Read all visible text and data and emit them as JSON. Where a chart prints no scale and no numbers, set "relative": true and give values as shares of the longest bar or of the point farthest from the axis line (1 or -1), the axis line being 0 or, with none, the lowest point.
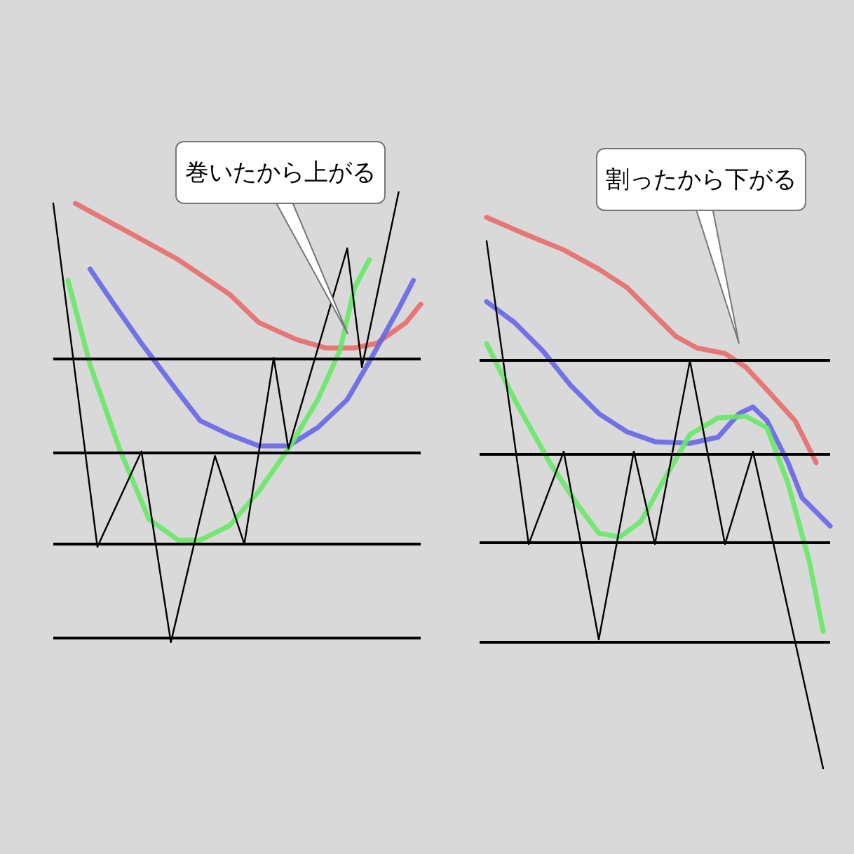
{
  "chart_data": [
    {
      "type": "line",
      "relative": true,
      "tick_labels": false,
      "marker": "none",
      "line_style": "solid",
      "categories": [
        null,
        null,
        null,
        null,
        null,
        null,
        null,
        null,
        null,
        null,
        null,
        null,
        null,
        null,
        null,
        null,
        null,
        null,
        null,
        null,
        null,
        null,
        null,
        null,
        null,
        null,
        null,
        null,
        null,
        null,
        null,
        null,
        null,
        null,
        null,
        null,
        null,
        null,
        null,
        null,
        null,
        null,
        null,
        null,
        null,
        null,
        null,
        null,
        null,
        null,
        null
      ],
      "annotations": [
        "巻いたから上がる"
      ],
      "ref_lines": [
        {
          "axis": "y",
          "value": 0.629,
          "color": "#000000"
        },
        {
          "axis": "y",
          "value": 0.424,
          "color": "#000000"
        },
        {
          "axis": "y",
          "value": 0.218,
          "color": "#000000"
        },
        {
          "axis": "y",
          "value": 0.006,
          "color": "#000000"
        }
      ],
      "series": [
        {
          "color": "#000000",
          "values": [
            0.975,
            null,
            null,
            null,
            null,
            null,
            0.212,
            null,
            null,
            null,
            null,
            null,
            0.424,
            null,
            null,
            null,
            0,
            null,
            null,
            null,
            null,
            null,
            0.414,
            null,
            null,
            null,
            0.218,
            null,
            null,
            null,
            0.632,
            null,
            0.43,
            null,
            null,
            null,
            null,
            null,
            null,
            null,
            0.875,
            null,
            0.611,
            null,
            null,
            null,
            null,
            1,
            null,
            null,
            null
          ]
        },
        {
          "color": "#e86a6a",
          "values": [
            null,
            null,
            null,
            0.975,
            null,
            null,
            null,
            null,
            null,
            null,
            0.913,
            null,
            null,
            null,
            null,
            null,
            null,
            0.85,
            null,
            null,
            null,
            null,
            null,
            null,
            0.773,
            null,
            null,
            null,
            0.71,
            null,
            null,
            null,
            null,
            0.673,
            null,
            null,
            null,
            0.654,
            null,
            null,
            null,
            0.654,
            null,
            null,
            0.664,
            null,
            null,
            null,
            0.71,
            null,
            0.751
          ]
        },
        {
          "color": "#6666e8",
          "values": [
            null,
            null,
            null,
            null,
            null,
            0.829,
            null,
            null,
            0.757,
            null,
            null,
            null,
            0.664,
            null,
            null,
            null,
            null,
            0.555,
            null,
            null,
            0.492,
            null,
            null,
            null,
            0.461,
            null,
            null,
            null,
            0.436,
            null,
            null,
            null,
            0.436,
            null,
            null,
            null,
            0.477,
            null,
            null,
            null,
            0.539,
            null,
            null,
            0.623,
            null,
            null,
            null,
            0.741,
            null,
            0.804,
            null
          ]
        },
        {
          "color": "#66e866",
          "values": [
            null,
            null,
            0.804,
            null,
            null,
            0.617,
            null,
            null,
            null,
            0.43,
            null,
            null,
            null,
            0.274,
            null,
            null,
            null,
            0.227,
            null,
            null,
            0.227,
            null,
            null,
            null,
            0.259,
            null,
            null,
            null,
            0.336,
            null,
            null,
            null,
            0.43,
            null,
            null,
            null,
            0.539,
            null,
            null,
            0.648,
            null,
            0.788,
            null,
            0.85,
            null,
            null,
            null,
            null,
            null,
            null,
            null
          ]
        }
      ]
    },
    {
      "type": "line",
      "relative": true,
      "tick_labels": false,
      "marker": "none",
      "line_style": "solid",
      "categories": [
        null,
        null,
        null,
        null,
        null,
        null,
        null,
        null,
        null,
        null,
        null,
        null,
        null,
        null,
        null,
        null,
        null,
        null,
        null,
        null,
        null,
        null,
        null,
        null,
        null,
        null,
        null,
        null,
        null,
        null,
        null,
        null,
        null,
        null,
        null,
        null,
        null,
        null,
        null,
        null,
        null,
        null,
        null,
        null,
        null,
        null,
        null,
        null,
        null,
        null,
        null
      ],
      "annotations": [
        "割ったから下がる"
      ],
      "ref_lines": [
        {
          "axis": "y",
          "value": 0.743,
          "color": "#000000"
        },
        {
          "axis": "y",
          "value": 0.57,
          "color": "#000000"
        },
        {
          "axis": "y",
          "value": 0.407,
          "color": "#000000"
        },
        {
          "axis": "y",
          "value": 0.229,
          "color": "#000000"
        }
      ],
      "series": [
        {
          "color": "#000000",
          "values": [
            null,
            0.957,
            null,
            null,
            null,
            null,
            null,
            0.407,
            null,
            null,
            null,
            null,
            0.575,
            null,
            null,
            null,
            null,
            0.234,
            null,
            null,
            null,
            null,
            0.575,
            null,
            null,
            0.407,
            null,
            null,
            null,
            null,
            0.74,
            null,
            null,
            null,
            null,
            0.407,
            null,
            null,
            null,
            0.575,
            null,
            null,
            null,
            null,
            null,
            null,
            null,
            null,
            null,
            0,
            null
          ]
        },
        {
          "color": "#e86a6a",
          "values": [
            null,
            1,
            null,
            null,
            null,
            null,
            null,
            0.967,
            null,
            null,
            null,
            null,
            0.941,
            null,
            null,
            null,
            null,
            0.906,
            null,
            null,
            null,
            0.873,
            null,
            null,
            null,
            0.822,
            null,
            null,
            0.784,
            null,
            null,
            0.763,
            null,
            null,
            null,
            0.753,
            null,
            null,
            0.728,
            null,
            null,
            0.687,
            null,
            null,
            null,
            0.631,
            null,
            null,
            0.555,
            null,
            null
          ]
        },
        {
          "color": "#6666e8",
          "values": [
            null,
            0.847,
            null,
            null,
            null,
            0.809,
            null,
            null,
            null,
            0.758,
            null,
            null,
            null,
            0.695,
            null,
            null,
            null,
            0.644,
            null,
            null,
            null,
            0.611,
            null,
            null,
            null,
            0.593,
            null,
            null,
            null,
            null,
            0.59,
            null,
            null,
            null,
            0.601,
            null,
            null,
            0.644,
            null,
            0.656,
            null,
            0.631,
            null,
            null,
            0.555,
            null,
            0.491,
            null,
            null,
            null,
            0.44
          ]
        },
        {
          "color": "#66e866",
          "values": [
            null,
            0.771,
            null,
            null,
            null,
            0.669,
            null,
            null,
            null,
            null,
            0.555,
            null,
            null,
            null,
            0.478,
            null,
            null,
            0.427,
            null,
            null,
            0.42,
            null,
            null,
            0.448,
            null,
            null,
            0.517,
            null,
            null,
            null,
            0.606,
            null,
            null,
            null,
            0.636,
            null,
            null,
            null,
            0.639,
            null,
            null,
            0.618,
            null,
            null,
            0.517,
            null,
            null,
            0.377,
            null,
            0.249,
            null
          ]
        }
      ]
    }
  ]
}
